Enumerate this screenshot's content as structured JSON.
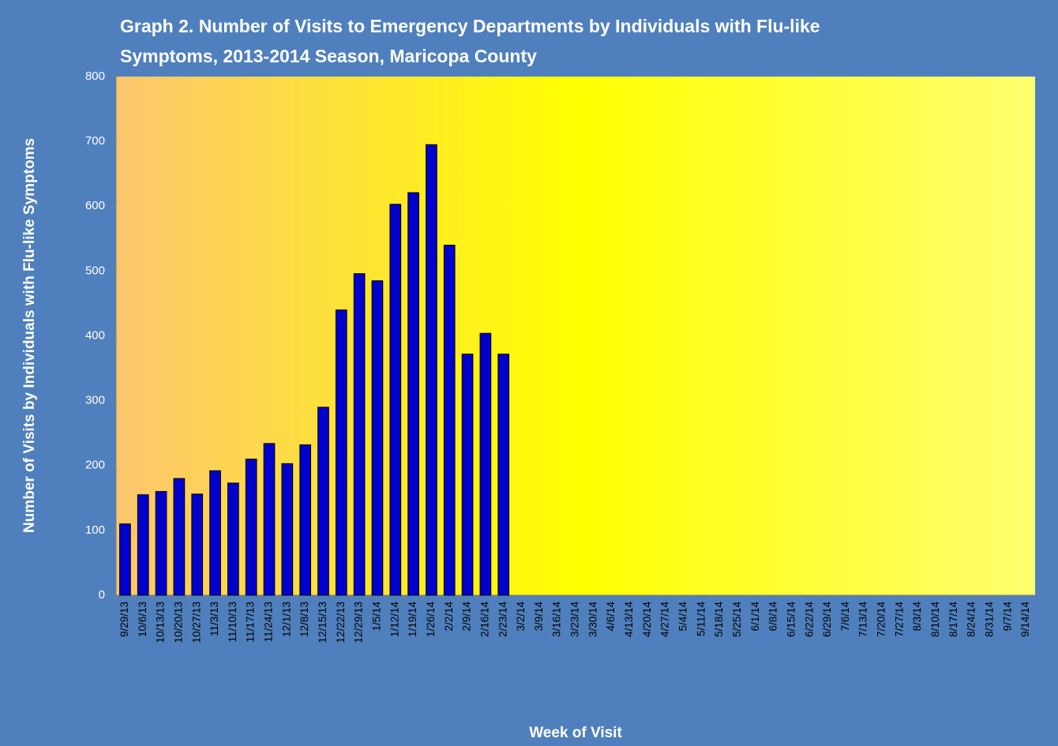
{
  "chart_data": {
    "type": "bar",
    "title": [
      "Graph 2. Number of Visits to Emergency Departments by Individuals with Flu-like",
      "Symptoms, 2013-2014 Season, Maricopa County"
    ],
    "x_label": "Week of Visit",
    "y_label": "Number of Visits by Individuals with Flu-like Symptoms",
    "categories": [
      "9/29/13",
      "10/6/13",
      "10/13/13",
      "10/20/13",
      "10/27/13",
      "11/3/13",
      "11/10/13",
      "11/17/13",
      "11/24/13",
      "12/1/13",
      "12/8/13",
      "12/15/13",
      "12/22/13",
      "12/29/13",
      "1/5/14",
      "1/12/14",
      "1/19/14",
      "1/26/14",
      "2/2/14",
      "2/9/14",
      "2/16/14",
      "2/23/14",
      "3/2/14",
      "3/9/14",
      "3/16/14",
      "3/23/14",
      "3/30/14",
      "4/6/14",
      "4/13/14",
      "4/20/14",
      "4/27/14",
      "5/4/14",
      "5/11/14",
      "5/18/14",
      "5/25/14",
      "6/1/14",
      "6/8/14",
      "6/15/14",
      "6/22/14",
      "6/29/14",
      "7/6/14",
      "7/13/14",
      "7/20/14",
      "7/27/14",
      "8/3/14",
      "8/10/14",
      "8/17/14",
      "8/24/14",
      "8/31/14",
      "9/7/14",
      "9/14/14"
    ],
    "values": [
      110,
      155,
      160,
      180,
      156,
      192,
      173,
      210,
      234,
      203,
      232,
      290,
      440,
      496,
      485,
      603,
      621,
      695,
      540,
      372,
      404,
      372,
      null,
      null,
      null,
      null,
      null,
      null,
      null,
      null,
      null,
      null,
      null,
      null,
      null,
      null,
      null,
      null,
      null,
      null,
      null,
      null,
      null,
      null,
      null,
      null,
      null,
      null,
      null,
      null,
      null
    ],
    "color": "#0000cc",
    "ylim": [
      0,
      800
    ],
    "yticks": [
      0,
      100,
      200,
      300,
      400,
      500,
      600,
      700,
      800
    ],
    "grid": false
  }
}
